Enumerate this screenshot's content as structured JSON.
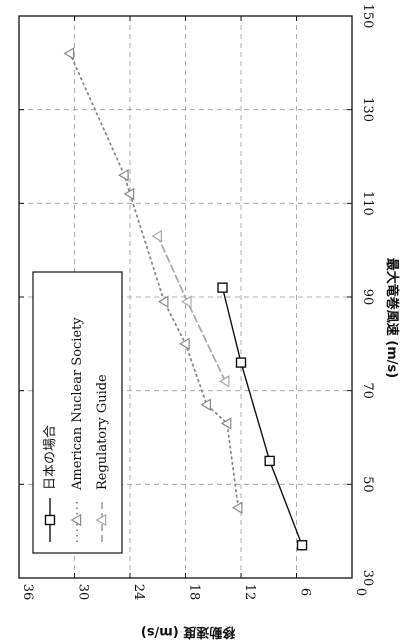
{
  "chart_data": {
    "type": "line",
    "orientation": "rotated 90° counter-clockwise",
    "xlabel": "最大竜巻風速 (m/s)",
    "ylabel": "移動速度 (m/s)",
    "xlim": [
      30,
      150
    ],
    "ylim": [
      0,
      36
    ],
    "xticks": [
      30,
      50,
      70,
      90,
      110,
      130,
      150
    ],
    "yticks": [
      0,
      6,
      12,
      18,
      24,
      30,
      36
    ],
    "grid": true,
    "legend_position": "bottom-left",
    "series": [
      {
        "name": "日本の場合",
        "line": "solid",
        "marker": "square",
        "color": "#111111",
        "x": [
          37,
          55,
          76,
          92
        ],
        "y": [
          5.4,
          8.9,
          12,
          14
        ]
      },
      {
        "name": "American Nuclear Society",
        "line": "dotted",
        "marker": "triangle",
        "color": "#888888",
        "x": [
          45,
          63,
          67,
          80,
          89,
          112,
          116,
          142
        ],
        "y": [
          12.3,
          13.5,
          15.7,
          18,
          20.3,
          24,
          24.6,
          30.5
        ]
      },
      {
        "name": "Regulatory Guide",
        "line": "dashed",
        "marker": "triangle",
        "color": "#aaaaaa",
        "x": [
          72,
          89,
          103
        ],
        "y": [
          13.7,
          17.8,
          21
        ]
      }
    ]
  }
}
